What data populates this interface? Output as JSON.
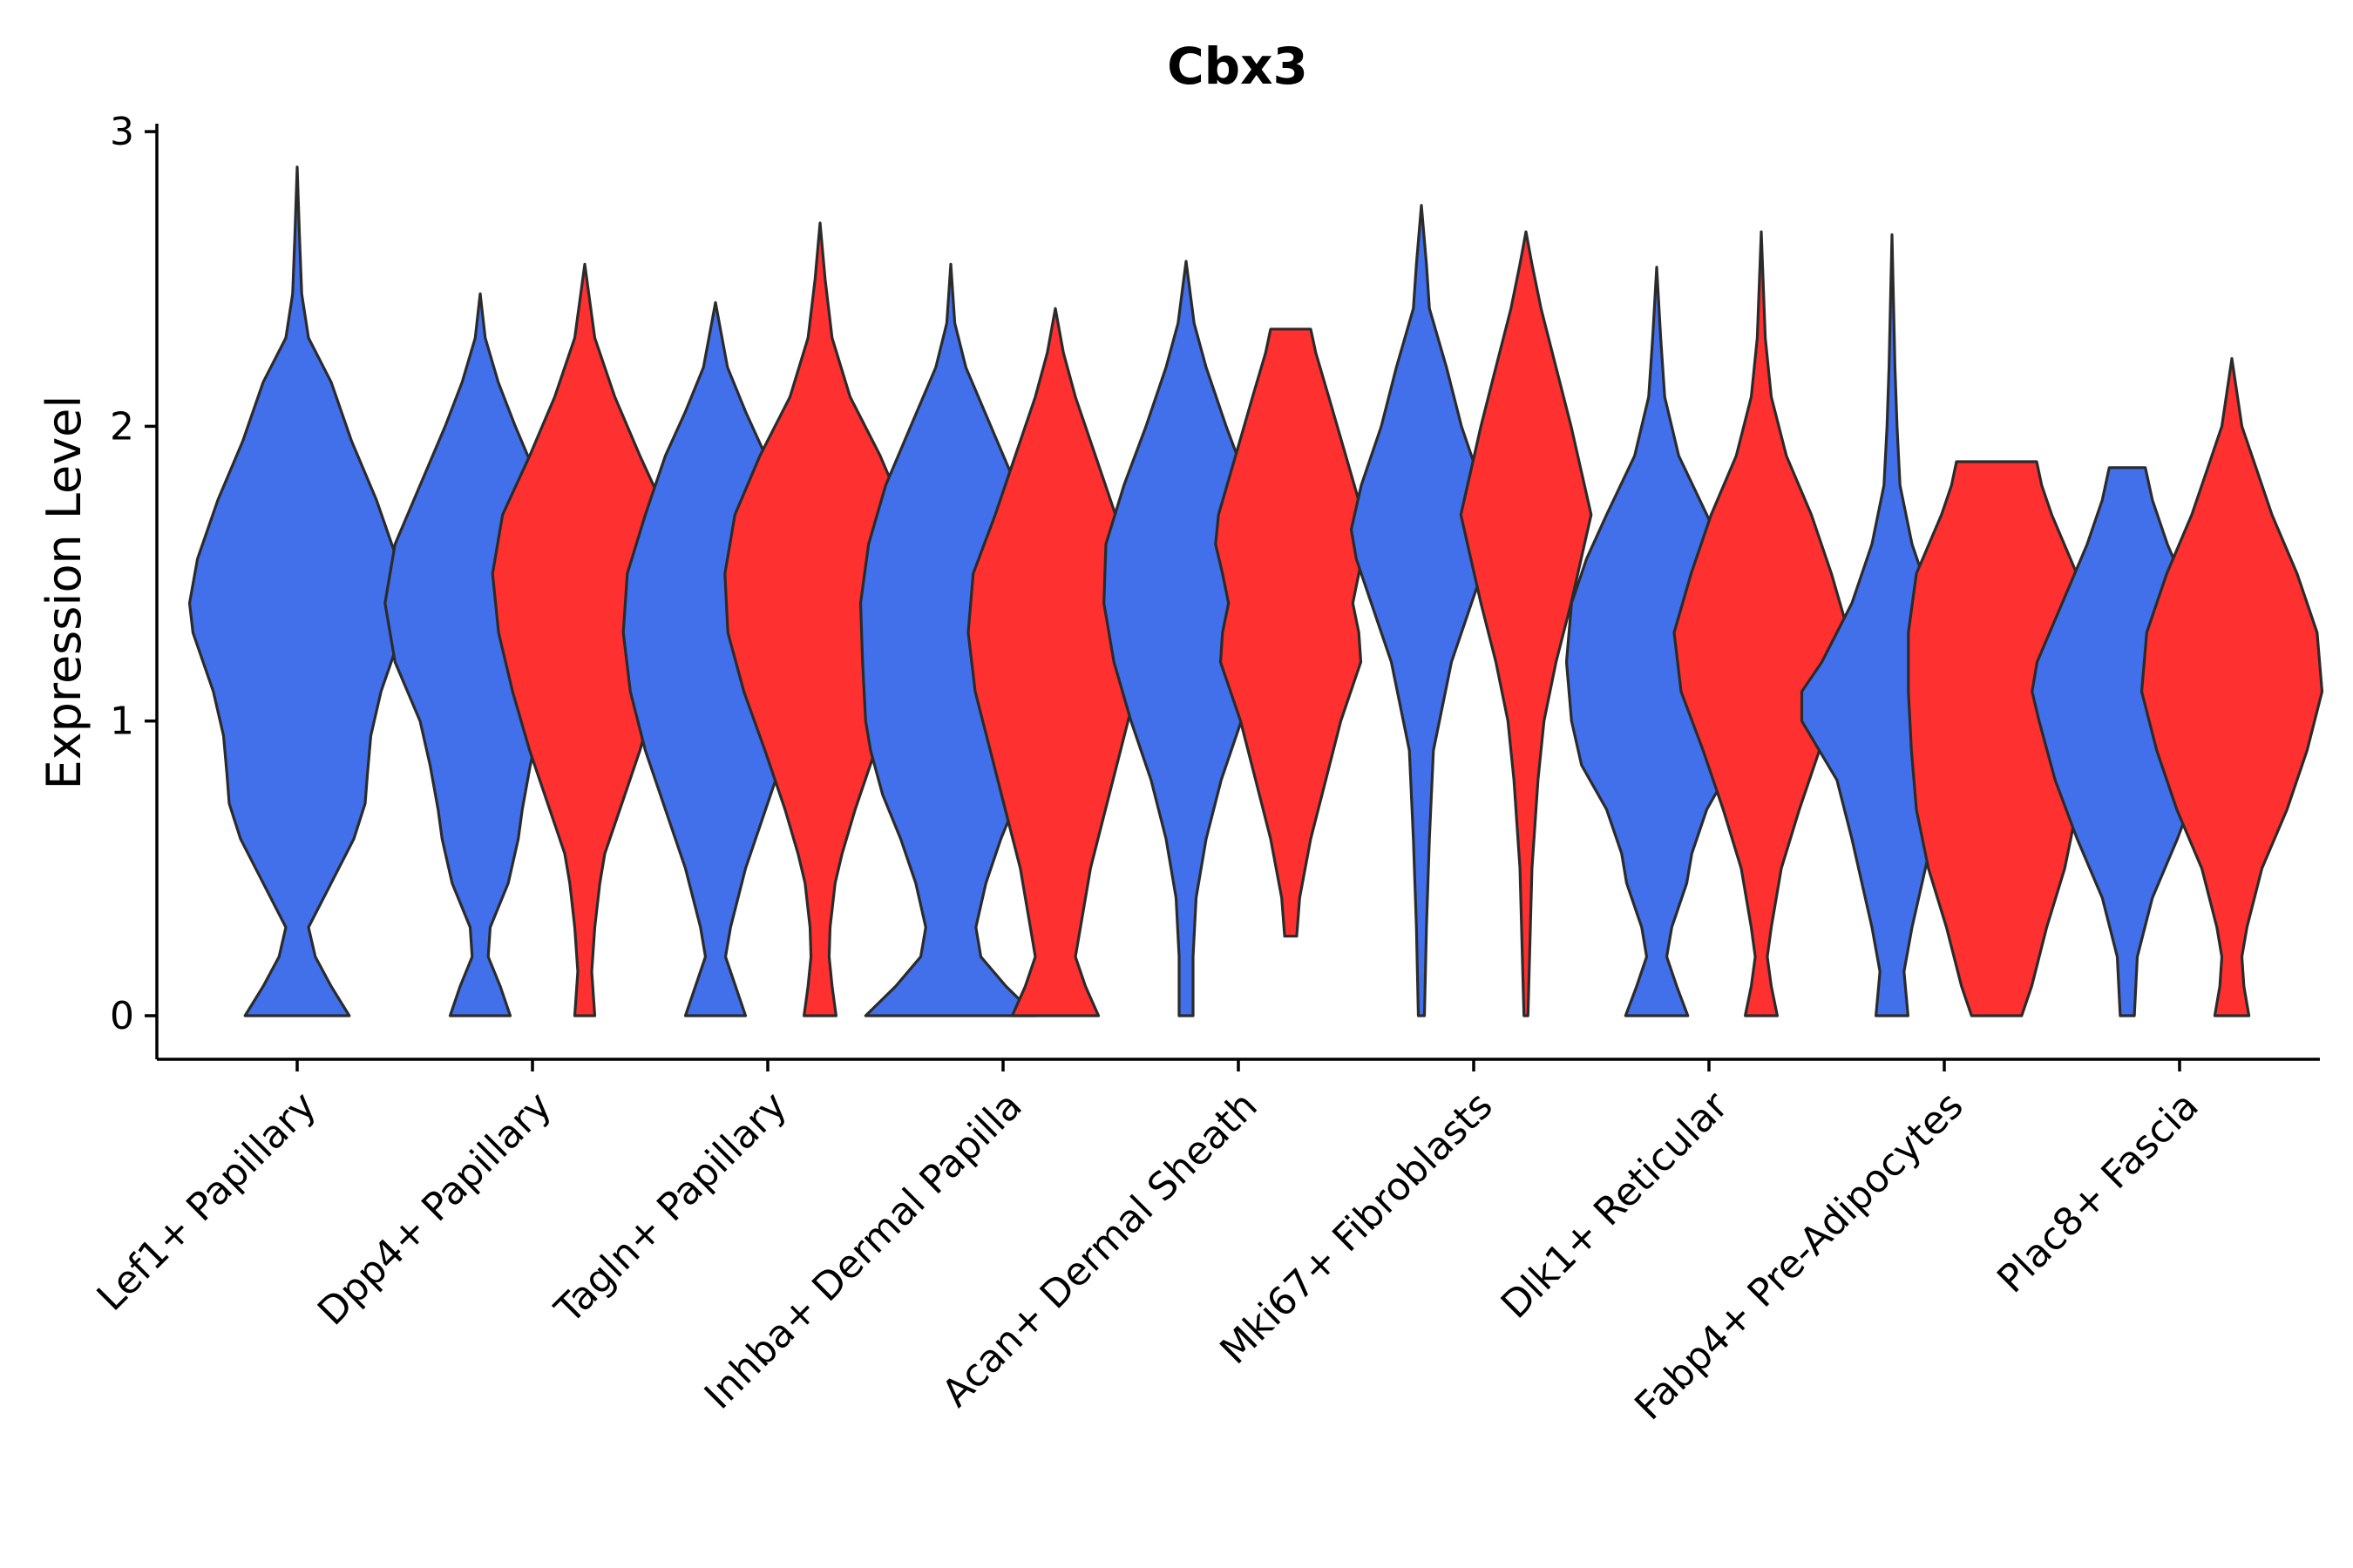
{
  "chart_data": {
    "type": "violin",
    "title": "Cbx3",
    "xlabel": "",
    "ylabel": "Expression Level",
    "ylim": [
      -0.15,
      3.0
    ],
    "yticks": [
      0,
      1,
      2,
      3
    ],
    "grid": false,
    "legend": "none",
    "colors": {
      "group_a": "#4270EB",
      "group_b": "#FF3030"
    },
    "categories": [
      "Lef1+ Papillary",
      "Dpp4+ Papillary",
      "Tagln+ Papillary",
      "Inhba+ Dermal Papilla",
      "Acan+ Dermal Sheath",
      "Mki67+ Fibroblasts",
      "Dlk1+ Reticular",
      "Fabp4+ Pre-Adipocytes",
      "Plac8+ Fascia"
    ],
    "violins": [
      {
        "category": "Lef1+ Papillary",
        "group": "group_a",
        "min": 0,
        "max": 2.88,
        "profile": [
          [
            0,
            0.46
          ],
          [
            0.1,
            0.3
          ],
          [
            0.2,
            0.16
          ],
          [
            0.3,
            0.1
          ],
          [
            0.45,
            0.3
          ],
          [
            0.6,
            0.5
          ],
          [
            0.72,
            0.6
          ],
          [
            0.82,
            0.62
          ],
          [
            0.95,
            0.65
          ],
          [
            1.1,
            0.74
          ],
          [
            1.3,
            0.92
          ],
          [
            1.4,
            0.95
          ],
          [
            1.55,
            0.88
          ],
          [
            1.75,
            0.7
          ],
          [
            1.95,
            0.48
          ],
          [
            2.15,
            0.3
          ],
          [
            2.3,
            0.1
          ],
          [
            2.45,
            0.04
          ],
          [
            2.65,
            0.02
          ],
          [
            2.88,
            0.0
          ]
        ]
      },
      {
        "category": "Dpp4+ Papillary",
        "group": "group_a",
        "min": 0,
        "max": 2.45,
        "profile": [
          [
            0,
            0.3
          ],
          [
            0.1,
            0.2
          ],
          [
            0.2,
            0.08
          ],
          [
            0.3,
            0.1
          ],
          [
            0.45,
            0.28
          ],
          [
            0.6,
            0.38
          ],
          [
            0.7,
            0.42
          ],
          [
            0.85,
            0.5
          ],
          [
            1.0,
            0.6
          ],
          [
            1.2,
            0.85
          ],
          [
            1.4,
            0.95
          ],
          [
            1.6,
            0.85
          ],
          [
            1.8,
            0.6
          ],
          [
            2.0,
            0.35
          ],
          [
            2.15,
            0.18
          ],
          [
            2.3,
            0.05
          ],
          [
            2.45,
            0.0
          ]
        ]
      },
      {
        "category": "Dpp4+ Papillary",
        "group": "group_b",
        "min": 0,
        "max": 2.55,
        "profile": [
          [
            0,
            0.1
          ],
          [
            0.15,
            0.07
          ],
          [
            0.3,
            0.1
          ],
          [
            0.45,
            0.15
          ],
          [
            0.55,
            0.2
          ],
          [
            0.7,
            0.35
          ],
          [
            0.9,
            0.55
          ],
          [
            1.1,
            0.72
          ],
          [
            1.3,
            0.86
          ],
          [
            1.5,
            0.92
          ],
          [
            1.7,
            0.82
          ],
          [
            1.9,
            0.55
          ],
          [
            2.1,
            0.3
          ],
          [
            2.3,
            0.1
          ],
          [
            2.45,
            0.04
          ],
          [
            2.55,
            0.0
          ]
        ]
      },
      {
        "category": "Tagln+ Papillary",
        "group": "group_a",
        "min": 0,
        "max": 2.42,
        "profile": [
          [
            0,
            0.3
          ],
          [
            0.1,
            0.2
          ],
          [
            0.2,
            0.1
          ],
          [
            0.3,
            0.15
          ],
          [
            0.5,
            0.3
          ],
          [
            0.7,
            0.5
          ],
          [
            0.9,
            0.7
          ],
          [
            1.1,
            0.85
          ],
          [
            1.3,
            0.92
          ],
          [
            1.5,
            0.88
          ],
          [
            1.7,
            0.7
          ],
          [
            1.9,
            0.5
          ],
          [
            2.05,
            0.3
          ],
          [
            2.2,
            0.12
          ],
          [
            2.42,
            0.0
          ]
        ]
      },
      {
        "category": "Tagln+ Papillary",
        "group": "group_b",
        "min": 0,
        "max": 2.69,
        "profile": [
          [
            0,
            0.16
          ],
          [
            0.1,
            0.12
          ],
          [
            0.2,
            0.09
          ],
          [
            0.3,
            0.1
          ],
          [
            0.45,
            0.15
          ],
          [
            0.55,
            0.22
          ],
          [
            0.7,
            0.35
          ],
          [
            0.9,
            0.55
          ],
          [
            1.1,
            0.76
          ],
          [
            1.3,
            0.92
          ],
          [
            1.5,
            0.95
          ],
          [
            1.7,
            0.85
          ],
          [
            1.9,
            0.6
          ],
          [
            2.1,
            0.3
          ],
          [
            2.3,
            0.12
          ],
          [
            2.5,
            0.05
          ],
          [
            2.69,
            0.0
          ]
        ]
      },
      {
        "category": "Inhba+ Dermal Papilla",
        "group": "group_a",
        "min": 0,
        "max": 2.55,
        "profile": [
          [
            0,
            0.85
          ],
          [
            0.1,
            0.55
          ],
          [
            0.2,
            0.3
          ],
          [
            0.3,
            0.25
          ],
          [
            0.45,
            0.35
          ],
          [
            0.6,
            0.5
          ],
          [
            0.75,
            0.68
          ],
          [
            0.9,
            0.8
          ],
          [
            1.0,
            0.85
          ],
          [
            1.2,
            0.88
          ],
          [
            1.4,
            0.9
          ],
          [
            1.6,
            0.82
          ],
          [
            1.8,
            0.65
          ],
          [
            2.0,
            0.4
          ],
          [
            2.2,
            0.15
          ],
          [
            2.35,
            0.04
          ],
          [
            2.55,
            0.0
          ]
        ]
      },
      {
        "category": "Inhba+ Dermal Papilla",
        "group": "group_b",
        "min": 0,
        "max": 2.4,
        "profile": [
          [
            0,
            0.43
          ],
          [
            0.1,
            0.3
          ],
          [
            0.2,
            0.2
          ],
          [
            0.3,
            0.25
          ],
          [
            0.5,
            0.35
          ],
          [
            0.7,
            0.5
          ],
          [
            0.9,
            0.65
          ],
          [
            1.1,
            0.8
          ],
          [
            1.3,
            0.87
          ],
          [
            1.5,
            0.82
          ],
          [
            1.7,
            0.6
          ],
          [
            1.9,
            0.4
          ],
          [
            2.1,
            0.2
          ],
          [
            2.25,
            0.08
          ],
          [
            2.4,
            0.0
          ]
        ]
      },
      {
        "category": "Acan+ Dermal Sheath",
        "group": "group_a",
        "min": 0,
        "max": 2.56,
        "profile": [
          [
            0,
            0.07
          ],
          [
            0.2,
            0.07
          ],
          [
            0.4,
            0.1
          ],
          [
            0.6,
            0.2
          ],
          [
            0.8,
            0.35
          ],
          [
            1.0,
            0.55
          ],
          [
            1.2,
            0.72
          ],
          [
            1.4,
            0.82
          ],
          [
            1.6,
            0.8
          ],
          [
            1.8,
            0.62
          ],
          [
            2.0,
            0.4
          ],
          [
            2.2,
            0.2
          ],
          [
            2.35,
            0.08
          ],
          [
            2.56,
            0.0
          ]
        ]
      },
      {
        "category": "Acan+ Dermal Sheath",
        "group": "group_b",
        "min": 0.27,
        "max": 2.33,
        "profile": [
          [
            0.27,
            0.06
          ],
          [
            0.4,
            0.09
          ],
          [
            0.6,
            0.2
          ],
          [
            0.8,
            0.35
          ],
          [
            1.0,
            0.5
          ],
          [
            1.1,
            0.6
          ],
          [
            1.2,
            0.7
          ],
          [
            1.3,
            0.68
          ],
          [
            1.4,
            0.62
          ],
          [
            1.5,
            0.68
          ],
          [
            1.6,
            0.75
          ],
          [
            1.7,
            0.72
          ],
          [
            1.9,
            0.55
          ],
          [
            2.1,
            0.38
          ],
          [
            2.25,
            0.25
          ],
          [
            2.33,
            0.2
          ]
        ]
      },
      {
        "category": "Mki67+ Fibroblasts",
        "group": "group_a",
        "min": 0,
        "max": 2.75,
        "profile": [
          [
            0,
            0.03
          ],
          [
            0.3,
            0.05
          ],
          [
            0.6,
            0.08
          ],
          [
            0.9,
            0.12
          ],
          [
            1.2,
            0.3
          ],
          [
            1.4,
            0.5
          ],
          [
            1.55,
            0.65
          ],
          [
            1.65,
            0.7
          ],
          [
            1.8,
            0.6
          ],
          [
            2.0,
            0.4
          ],
          [
            2.2,
            0.25
          ],
          [
            2.4,
            0.08
          ],
          [
            2.55,
            0.05
          ],
          [
            2.75,
            0.0
          ]
        ]
      },
      {
        "category": "Mki67+ Fibroblasts",
        "group": "group_b",
        "min": 0,
        "max": 2.66,
        "profile": [
          [
            0,
            0.02
          ],
          [
            0.5,
            0.06
          ],
          [
            0.8,
            0.12
          ],
          [
            1.0,
            0.18
          ],
          [
            1.2,
            0.3
          ],
          [
            1.4,
            0.45
          ],
          [
            1.55,
            0.55
          ],
          [
            1.7,
            0.65
          ],
          [
            1.85,
            0.55
          ],
          [
            2.0,
            0.45
          ],
          [
            2.2,
            0.3
          ],
          [
            2.4,
            0.15
          ],
          [
            2.55,
            0.06
          ],
          [
            2.66,
            0.0
          ]
        ]
      },
      {
        "category": "Dlk1+ Reticular",
        "group": "group_a",
        "min": 0,
        "max": 2.54,
        "profile": [
          [
            0,
            0.31
          ],
          [
            0.1,
            0.2
          ],
          [
            0.2,
            0.1
          ],
          [
            0.3,
            0.15
          ],
          [
            0.45,
            0.3
          ],
          [
            0.55,
            0.35
          ],
          [
            0.7,
            0.5
          ],
          [
            0.85,
            0.75
          ],
          [
            1.0,
            0.85
          ],
          [
            1.2,
            0.9
          ],
          [
            1.4,
            0.85
          ],
          [
            1.55,
            0.7
          ],
          [
            1.7,
            0.5
          ],
          [
            1.9,
            0.22
          ],
          [
            2.1,
            0.08
          ],
          [
            2.3,
            0.04
          ],
          [
            2.54,
            0.0
          ]
        ]
      },
      {
        "category": "Dlk1+ Reticular",
        "group": "group_b",
        "min": 0,
        "max": 2.66,
        "profile": [
          [
            0,
            0.16
          ],
          [
            0.1,
            0.1
          ],
          [
            0.2,
            0.06
          ],
          [
            0.3,
            0.1
          ],
          [
            0.5,
            0.2
          ],
          [
            0.7,
            0.38
          ],
          [
            0.9,
            0.58
          ],
          [
            1.1,
            0.8
          ],
          [
            1.3,
            0.87
          ],
          [
            1.5,
            0.7
          ],
          [
            1.7,
            0.5
          ],
          [
            1.9,
            0.25
          ],
          [
            2.1,
            0.1
          ],
          [
            2.3,
            0.04
          ],
          [
            2.66,
            0.0
          ]
        ]
      },
      {
        "category": "Fabp4+ Pre-Adipocytes",
        "group": "group_a",
        "min": 0,
        "max": 2.65,
        "profile": [
          [
            0,
            0.16
          ],
          [
            0.15,
            0.12
          ],
          [
            0.3,
            0.2
          ],
          [
            0.45,
            0.3
          ],
          [
            0.6,
            0.4
          ],
          [
            0.8,
            0.55
          ],
          [
            1.0,
            0.9
          ],
          [
            1.1,
            0.9
          ],
          [
            1.2,
            0.7
          ],
          [
            1.4,
            0.4
          ],
          [
            1.6,
            0.2
          ],
          [
            1.8,
            0.08
          ],
          [
            2.0,
            0.05
          ],
          [
            2.2,
            0.03
          ],
          [
            2.65,
            0.0
          ]
        ]
      },
      {
        "category": "Fabp4+ Pre-Adipocytes",
        "group": "group_b",
        "min": 0,
        "max": 1.88,
        "profile": [
          [
            0,
            0.25
          ],
          [
            0.1,
            0.35
          ],
          [
            0.3,
            0.5
          ],
          [
            0.5,
            0.68
          ],
          [
            0.7,
            0.8
          ],
          [
            0.9,
            0.85
          ],
          [
            1.1,
            0.88
          ],
          [
            1.3,
            0.88
          ],
          [
            1.5,
            0.8
          ],
          [
            1.7,
            0.55
          ],
          [
            1.8,
            0.45
          ],
          [
            1.88,
            0.4
          ]
        ]
      },
      {
        "category": "Plac8+ Fascia",
        "group": "group_a",
        "min": 0,
        "max": 1.86,
        "profile": [
          [
            0,
            0.07
          ],
          [
            0.2,
            0.1
          ],
          [
            0.4,
            0.25
          ],
          [
            0.6,
            0.5
          ],
          [
            0.8,
            0.72
          ],
          [
            1.0,
            0.88
          ],
          [
            1.1,
            0.95
          ],
          [
            1.2,
            0.9
          ],
          [
            1.4,
            0.65
          ],
          [
            1.6,
            0.4
          ],
          [
            1.75,
            0.25
          ],
          [
            1.86,
            0.18
          ]
        ]
      },
      {
        "category": "Plac8+ Fascia",
        "group": "group_b",
        "min": 0,
        "max": 2.23,
        "profile": [
          [
            0,
            0.17
          ],
          [
            0.1,
            0.12
          ],
          [
            0.2,
            0.1
          ],
          [
            0.3,
            0.15
          ],
          [
            0.5,
            0.3
          ],
          [
            0.7,
            0.55
          ],
          [
            0.9,
            0.75
          ],
          [
            1.1,
            0.9
          ],
          [
            1.3,
            0.85
          ],
          [
            1.5,
            0.65
          ],
          [
            1.7,
            0.4
          ],
          [
            1.85,
            0.25
          ],
          [
            2.0,
            0.1
          ],
          [
            2.23,
            0.0
          ]
        ]
      }
    ]
  }
}
